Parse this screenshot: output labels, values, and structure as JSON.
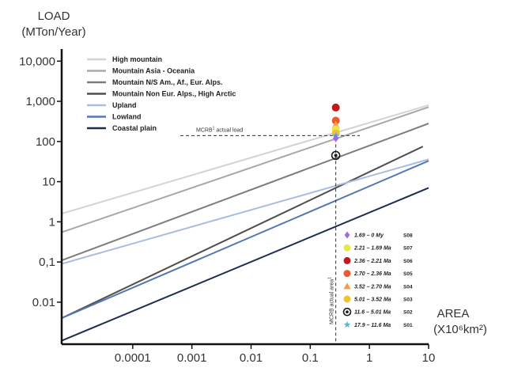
{
  "chart_data": {
    "type": "line",
    "x_axis": {
      "title_line1": "AREA",
      "title_line2": "(X10⁶km²)",
      "scale": "log",
      "range": [
        6.3e-06,
        10
      ],
      "ticks": [
        {
          "value": 0.0001,
          "label": "0.0001"
        },
        {
          "value": 0.001,
          "label": "0.001"
        },
        {
          "value": 0.01,
          "label": "0.01"
        },
        {
          "value": 0.1,
          "label": "0.1"
        },
        {
          "value": 1,
          "label": "1"
        },
        {
          "value": 10,
          "label": "10"
        }
      ]
    },
    "y_axis": {
      "title_line1": "LOAD",
      "title_line2": "(MTon/Year)",
      "scale": "log",
      "range": [
        0.0009,
        20000
      ],
      "ticks": [
        {
          "value": 10000,
          "label": "10,000"
        },
        {
          "value": 1000,
          "label": "1,000"
        },
        {
          "value": 100,
          "label": "100"
        },
        {
          "value": 10,
          "label": "10"
        },
        {
          "value": 1,
          "label": "1"
        },
        {
          "value": 0.1,
          "label": "0,1"
        },
        {
          "value": 0.01,
          "label": "0.01"
        }
      ]
    },
    "series": [
      {
        "name": "High mountain",
        "color": "#d3d3d3",
        "x": [
          6.3e-06,
          10
        ],
        "y": [
          1.6,
          800
        ]
      },
      {
        "name": "Mountain Asia - Oceania",
        "color": "#a8a8a8",
        "x": [
          6.3e-06,
          10
        ],
        "y": [
          0.55,
          720
        ]
      },
      {
        "name": "Mountain N/S Am., Af., Eur. Alps.",
        "color": "#7d7d7d",
        "x": [
          6.3e-06,
          10
        ],
        "y": [
          0.11,
          280
        ]
      },
      {
        "name": "Mountain Non Eur. Alps., High Arctic",
        "color": "#4f4f4f",
        "x": [
          6.3e-06,
          8
        ],
        "y": [
          0.004,
          75
        ]
      },
      {
        "name": "Upland",
        "color": "#a9bde2",
        "x": [
          6.3e-06,
          10
        ],
        "y": [
          0.09,
          36
        ]
      },
      {
        "name": "Lowland",
        "color": "#5676b5",
        "x": [
          6.3e-06,
          10
        ],
        "y": [
          0.004,
          33
        ]
      },
      {
        "name": "Coastal plain",
        "color": "#1d2d52",
        "x": [
          6.3e-06,
          10
        ],
        "y": [
          0.0011,
          7
        ]
      }
    ],
    "points": [
      {
        "epoch": "1.69 – 0 My",
        "seq": "S08",
        "x": 0.27,
        "y": 120,
        "marker": "diamond",
        "color": "#9b6de0"
      },
      {
        "epoch": "2.21 – 1.69 Ma",
        "seq": "S07",
        "x": 0.27,
        "y": 200,
        "marker": "circle",
        "color": "#e8e84a"
      },
      {
        "epoch": "2.36 – 2.21 Ma",
        "seq": "S06",
        "x": 0.27,
        "y": 700,
        "marker": "circle",
        "color": "#c0191c"
      },
      {
        "epoch": "2.70 – 2.36 Ma",
        "seq": "S05",
        "x": 0.27,
        "y": 330,
        "marker": "circle",
        "color": "#ec5a32"
      },
      {
        "epoch": "3.52 – 2.70 Ma",
        "seq": "S04",
        "x": 0.27,
        "y": 260,
        "marker": "triangle",
        "color": "#f39c4a"
      },
      {
        "epoch": "5.01 – 3.52 Ma",
        "seq": "S03",
        "x": 0.27,
        "y": 160,
        "marker": "circle",
        "color": "#f2c230"
      },
      {
        "epoch": "11.6 – 5.01 Ma",
        "seq": "S02",
        "x": 0.27,
        "y": 45,
        "marker": "ringed-circle",
        "color": "#1a1a1a"
      },
      {
        "epoch": "17.9 – 11.6 Ma",
        "seq": "S01",
        "x": 0.27,
        "y": 140,
        "marker": "star",
        "color": "#57b7e2"
      }
    ],
    "annotations": [
      {
        "label": "MCRB actual load",
        "superscript": "1",
        "y": 140
      },
      {
        "label": "MCRB actual area",
        "superscript": "1",
        "x": 0.27
      }
    ],
    "legend_placement": "top-left",
    "points_legend_placement": "bottom-right",
    "grid": false
  }
}
